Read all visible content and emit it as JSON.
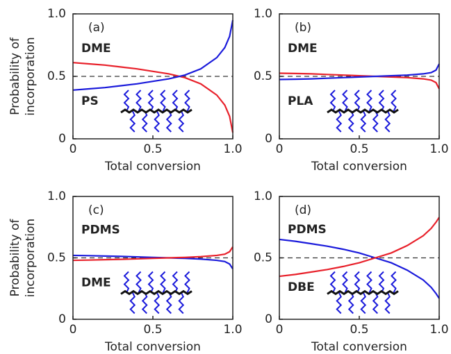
{
  "chart_data": [
    {
      "type": "line",
      "panel_label": "(a)",
      "y_label": [
        "Probability of",
        "incorporation"
      ],
      "x_label": "Total conversion",
      "xlim": [
        0,
        1
      ],
      "ylim": [
        0,
        1
      ],
      "xticks": [
        0,
        0.5,
        {
          "value": 1,
          "label": "1.0"
        }
      ],
      "yticks": [
        0,
        0.5,
        {
          "value": 1,
          "label": "1.0"
        }
      ],
      "reference_line": 0.5,
      "x": [
        0,
        0.1,
        0.2,
        0.3,
        0.4,
        0.5,
        0.6,
        0.7,
        0.8,
        0.9,
        0.95,
        0.98,
        1
      ],
      "series": [
        {
          "name": "DME",
          "color": "#e8202a",
          "values": [
            0.61,
            0.6,
            0.59,
            0.575,
            0.56,
            0.54,
            0.52,
            0.49,
            0.44,
            0.35,
            0.27,
            0.18,
            0.05
          ]
        },
        {
          "name": "PS",
          "color": "#1a1adb",
          "values": [
            0.39,
            0.4,
            0.41,
            0.425,
            0.44,
            0.46,
            0.48,
            0.51,
            0.56,
            0.65,
            0.73,
            0.82,
            0.95
          ]
        }
      ]
    },
    {
      "type": "line",
      "panel_label": "(b)",
      "x_label": "Total conversion",
      "xlim": [
        0,
        1
      ],
      "ylim": [
        0,
        1
      ],
      "xticks": [
        0,
        0.5,
        {
          "value": 1,
          "label": "1.0"
        }
      ],
      "yticks": [
        0,
        0.5,
        {
          "value": 1,
          "label": "1.0"
        }
      ],
      "reference_line": 0.5,
      "x": [
        0,
        0.1,
        0.2,
        0.3,
        0.4,
        0.5,
        0.6,
        0.7,
        0.8,
        0.9,
        0.95,
        0.98,
        1
      ],
      "series": [
        {
          "name": "DME",
          "color": "#e8202a",
          "values": [
            0.525,
            0.523,
            0.52,
            0.515,
            0.51,
            0.505,
            0.5,
            0.495,
            0.49,
            0.48,
            0.47,
            0.45,
            0.4
          ]
        },
        {
          "name": "PLA",
          "color": "#1a1adb",
          "values": [
            0.475,
            0.477,
            0.48,
            0.485,
            0.49,
            0.495,
            0.5,
            0.505,
            0.51,
            0.52,
            0.53,
            0.55,
            0.6
          ]
        }
      ]
    },
    {
      "type": "line",
      "panel_label": "(c)",
      "y_label": [
        "Probability of",
        "incorporation"
      ],
      "x_label": "Total conversion",
      "xlim": [
        0,
        1
      ],
      "ylim": [
        0,
        1
      ],
      "xticks": [
        0,
        0.5,
        {
          "value": 1,
          "label": "1.0"
        }
      ],
      "yticks": [
        0,
        0.5,
        {
          "value": 1,
          "label": "1.0"
        }
      ],
      "reference_line": 0.5,
      "x": [
        0,
        0.1,
        0.2,
        0.3,
        0.4,
        0.5,
        0.6,
        0.7,
        0.8,
        0.9,
        0.95,
        0.98,
        1
      ],
      "series": [
        {
          "name": "PDMS",
          "color": "#1a1adb",
          "values": [
            0.52,
            0.518,
            0.515,
            0.512,
            0.508,
            0.504,
            0.5,
            0.496,
            0.49,
            0.48,
            0.47,
            0.45,
            0.41
          ]
        },
        {
          "name": "DME",
          "color": "#e8202a",
          "values": [
            0.48,
            0.482,
            0.485,
            0.488,
            0.492,
            0.496,
            0.5,
            0.504,
            0.51,
            0.52,
            0.53,
            0.55,
            0.59
          ]
        }
      ]
    },
    {
      "type": "line",
      "panel_label": "(d)",
      "x_label": "Total conversion",
      "xlim": [
        0,
        1
      ],
      "ylim": [
        0,
        1
      ],
      "xticks": [
        0,
        0.5,
        {
          "value": 1,
          "label": "1.0"
        }
      ],
      "yticks": [
        0,
        0.5,
        {
          "value": 1,
          "label": "1.0"
        }
      ],
      "reference_line": 0.5,
      "x": [
        0,
        0.1,
        0.2,
        0.3,
        0.4,
        0.5,
        0.6,
        0.7,
        0.8,
        0.9,
        0.95,
        0.98,
        1
      ],
      "series": [
        {
          "name": "PDMS",
          "color": "#1a1adb",
          "values": [
            0.65,
            0.635,
            0.615,
            0.595,
            0.57,
            0.54,
            0.5,
            0.46,
            0.4,
            0.32,
            0.26,
            0.21,
            0.17
          ]
        },
        {
          "name": "DBE",
          "color": "#e8202a",
          "values": [
            0.35,
            0.365,
            0.385,
            0.405,
            0.43,
            0.46,
            0.5,
            0.54,
            0.6,
            0.68,
            0.74,
            0.79,
            0.83
          ]
        }
      ]
    }
  ]
}
